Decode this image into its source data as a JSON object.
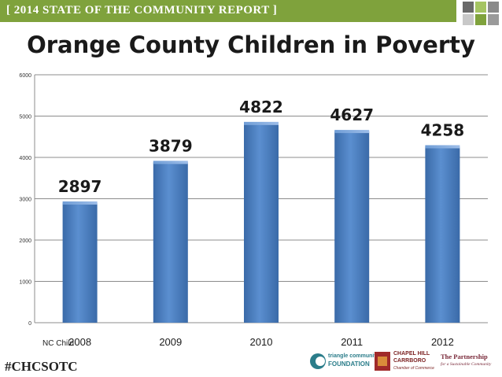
{
  "header": {
    "banner_text": "[ 2014 STATE OF THE COMMUNITY REPORT ]"
  },
  "colors": {
    "banner": "#7fa23c",
    "bar": "#4f81bd",
    "bar_dark": "#3a6aa8",
    "grid": "#8c8c8c"
  },
  "chart_data": {
    "type": "bar",
    "title": "Orange County Children in Poverty",
    "categories": [
      "2008",
      "2009",
      "2010",
      "2011",
      "2012"
    ],
    "values": [
      2897,
      3879,
      4822,
      4627,
      4258
    ],
    "data_labels": [
      "2897",
      "3879",
      "4822",
      "4627",
      "4258"
    ],
    "ylim": [
      0,
      6000
    ],
    "yticks": [
      0,
      1000,
      2000,
      3000,
      4000,
      5000,
      6000
    ],
    "ytick_labels": [
      "0",
      "1000",
      "2000",
      "3000",
      "4000",
      "5000",
      "6000"
    ],
    "grid": true,
    "legend": false
  },
  "footer": {
    "source": "NC Child",
    "hashtag": "#CHCSOTC",
    "logos": [
      {
        "name": "triangle community FOUNDATION",
        "line1": "triangle community",
        "line2": "FOUNDATION"
      },
      {
        "name": "CHAPEL HILL CARRBORO Chamber of Commerce",
        "line1": "CHAPEL HILL",
        "line2": "CARRBORO",
        "line3": "Chamber of Commerce"
      },
      {
        "name": "The Partnership for a Sustainable Community",
        "line1": "The Partnership",
        "line2": "for a Sustainable Community"
      }
    ]
  }
}
